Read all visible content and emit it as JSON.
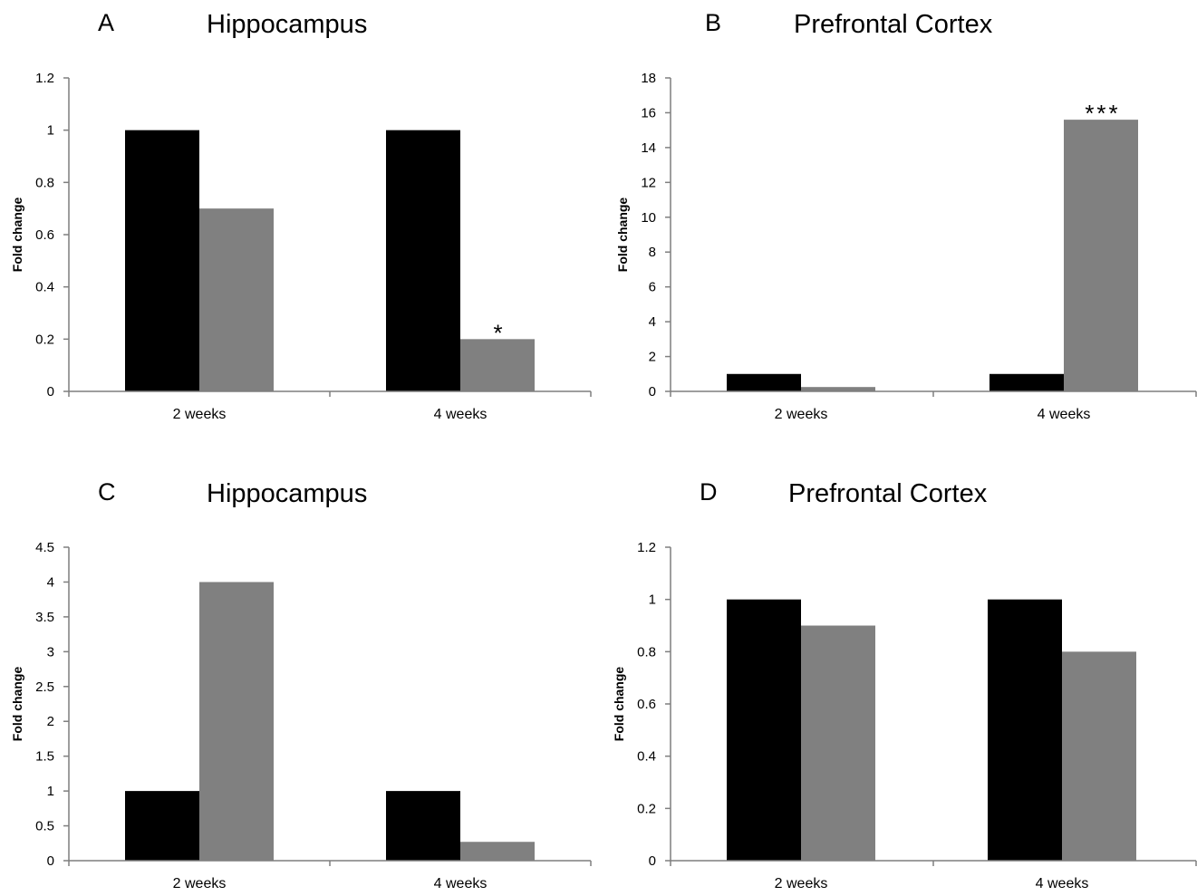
{
  "chart_data": [
    {
      "type": "bar",
      "panel": "A",
      "title": "Hippocampus",
      "ylabel": "Fold change",
      "categories": [
        "2 weeks",
        "4 weeks"
      ],
      "series": [
        {
          "values": [
            1.0,
            1.0
          ],
          "color": "#000000"
        },
        {
          "values": [
            0.7,
            0.2
          ],
          "color": "#808080"
        }
      ],
      "ylim": [
        0,
        1.2
      ],
      "yticks": [
        0,
        0.2,
        0.4,
        0.6,
        0.8,
        1,
        1.2
      ],
      "annotations": [
        {
          "text": "*",
          "category": 1,
          "series": 1
        }
      ],
      "grid": false,
      "legend": "none"
    },
    {
      "type": "bar",
      "panel": "B",
      "title": "Prefrontal Cortex",
      "ylabel": "Fold change",
      "categories": [
        "2 weeks",
        "4 weeks"
      ],
      "series": [
        {
          "values": [
            1.0,
            1.0
          ],
          "color": "#000000"
        },
        {
          "values": [
            0.25,
            15.6
          ],
          "color": "#808080"
        }
      ],
      "ylim": [
        0,
        18
      ],
      "yticks": [
        0,
        2,
        4,
        6,
        8,
        10,
        12,
        14,
        16,
        18
      ],
      "annotations": [
        {
          "text": "***",
          "category": 1,
          "series": 1
        }
      ],
      "grid": false,
      "legend": "none"
    },
    {
      "type": "bar",
      "panel": "C",
      "title": "Hippocampus",
      "ylabel": "Fold change",
      "categories": [
        "2 weeks",
        "4 weeks"
      ],
      "series": [
        {
          "values": [
            1.0,
            1.0
          ],
          "color": "#000000"
        },
        {
          "values": [
            4.0,
            0.27
          ],
          "color": "#808080"
        }
      ],
      "ylim": [
        0,
        4.5
      ],
      "yticks": [
        0,
        0.5,
        1,
        1.5,
        2,
        2.5,
        3,
        3.5,
        4,
        4.5
      ],
      "annotations": [],
      "grid": false,
      "legend": "none"
    },
    {
      "type": "bar",
      "panel": "D",
      "title": "Prefrontal Cortex",
      "ylabel": "Fold change",
      "categories": [
        "2 weeks",
        "4 weeks"
      ],
      "series": [
        {
          "values": [
            1.0,
            1.0
          ],
          "color": "#000000"
        },
        {
          "values": [
            0.9,
            0.8
          ],
          "color": "#808080"
        }
      ],
      "ylim": [
        0,
        1.2
      ],
      "yticks": [
        0,
        0.2,
        0.4,
        0.6,
        0.8,
        1,
        1.2
      ],
      "annotations": [],
      "grid": false,
      "legend": "none"
    }
  ]
}
